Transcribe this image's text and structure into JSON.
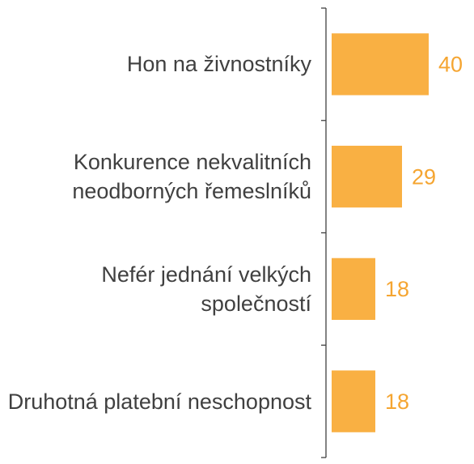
{
  "chart_data": {
    "type": "bar",
    "orientation": "horizontal",
    "categories": [
      "Hon na živnostníky",
      "Konkurence nekvalitních neodborných řemeslníků",
      "Nefér jednání velkých společností",
      "Druhotná platební neschopnost"
    ],
    "values": [
      40,
      29,
      18,
      18
    ],
    "color": "#f9b043"
  }
}
